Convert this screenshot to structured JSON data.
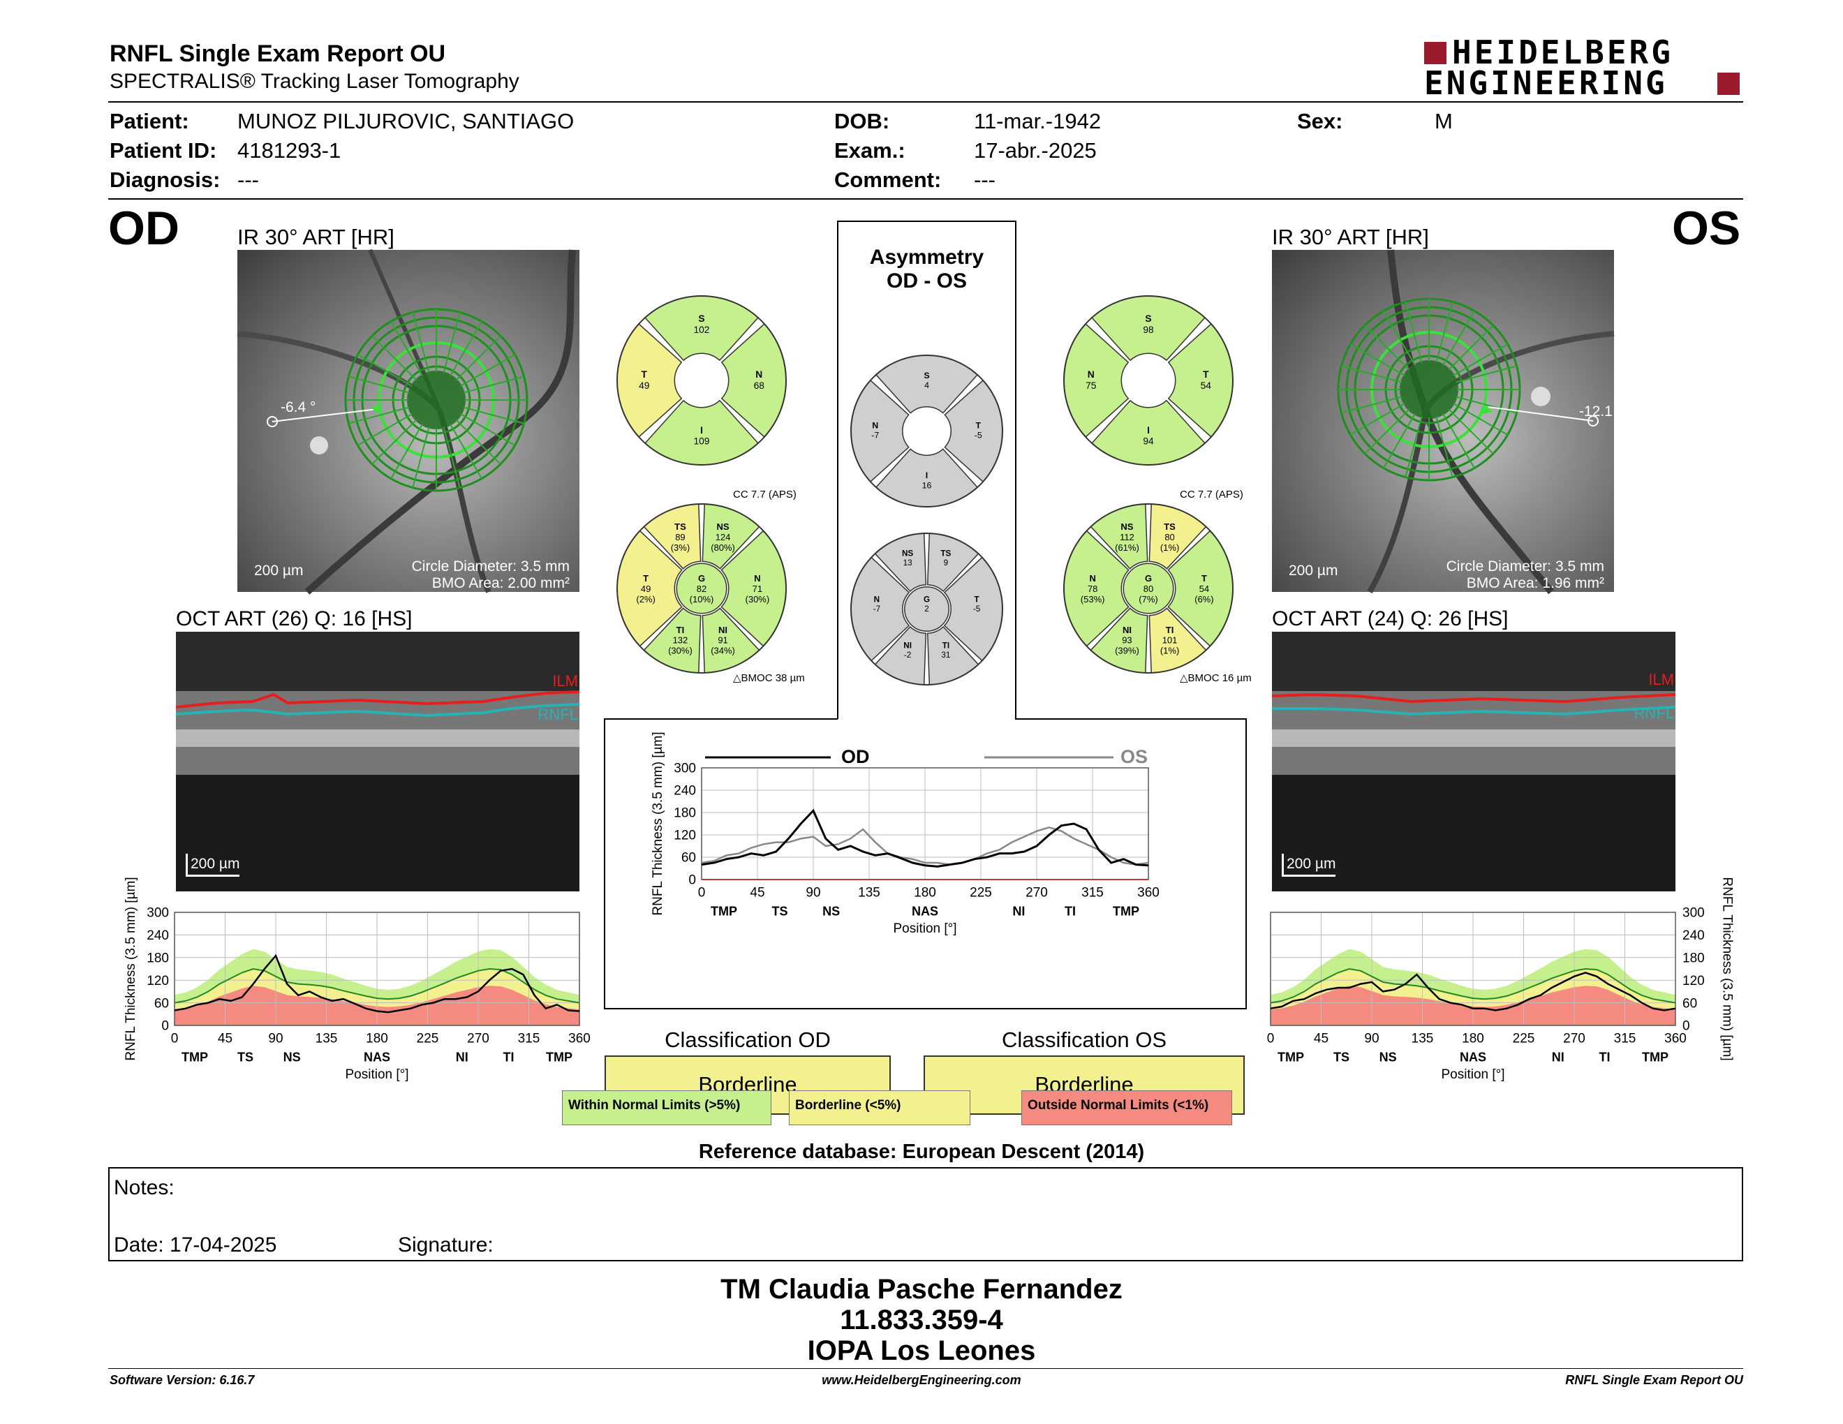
{
  "header": {
    "title": "RNFL Single Exam Report OU",
    "subtitle": "SPECTRALIS® Tracking Laser Tomography",
    "logo_line1": "HEIDELBERG",
    "logo_line2": "ENGINEERING"
  },
  "patient": {
    "patient_label": "Patient:",
    "patient_value": "MUNOZ PILJUROVIC, SANTIAGO",
    "id_label": "Patient ID:",
    "id_value": "4181293-1",
    "diagnosis_label": "Diagnosis:",
    "diagnosis_value": "---",
    "dob_label": "DOB:",
    "dob_value": "11-mar.-1942",
    "exam_label": "Exam.:",
    "exam_value": "17-abr.-2025",
    "comment_label": "Comment:",
    "comment_value": "---",
    "sex_label": "Sex:",
    "sex_value": "M"
  },
  "od": {
    "eye": "OD",
    "ir_title": "IR 30° ART [HR]",
    "angle": "-6.4 °",
    "scale": "200 µm",
    "circle_diameter": "Circle Diameter: 3.5 mm",
    "bmo_area": "BMO Area: 2.00 mm²",
    "oct_title": "OCT ART (26) Q: 16 [HS]",
    "ilm": "ILM",
    "rnfl": "RNFL",
    "oct_scale": "200 µm",
    "cc": "CC 7.7 (APS)",
    "bmoc": "BMOC 38 µm",
    "quad": {
      "S": "102",
      "T": "49",
      "N": "68",
      "I": "109"
    },
    "sectors": {
      "TS": [
        "TS",
        "89",
        "(3%)"
      ],
      "NS": [
        "NS",
        "124",
        "(80%)"
      ],
      "T": [
        "T",
        "49",
        "(2%)"
      ],
      "G": [
        "G",
        "82",
        "(10%)"
      ],
      "N": [
        "N",
        "71",
        "(30%)"
      ],
      "TI": [
        "TI",
        "132",
        "(30%)"
      ],
      "NI": [
        "NI",
        "91",
        "(34%)"
      ]
    }
  },
  "os": {
    "eye": "OS",
    "ir_title": "IR 30° ART [HR]",
    "angle": "-12.1",
    "scale": "200 µm",
    "circle_diameter": "Circle Diameter: 3.5 mm",
    "bmo_area": "BMO Area: 1.96 mm²",
    "oct_title": "OCT ART (24) Q: 26 [HS]",
    "ilm": "ILM",
    "rnfl": "RNFL",
    "oct_scale": "200 µm",
    "cc": "CC 7.7 (APS)",
    "bmoc": "BMOC 16 µm",
    "quad": {
      "S": "98",
      "N": "75",
      "T": "54",
      "I": "94"
    },
    "sectors": {
      "NS": [
        "NS",
        "112",
        "(61%)"
      ],
      "TS": [
        "TS",
        "80",
        "(1%)"
      ],
      "N": [
        "N",
        "78",
        "(53%)"
      ],
      "G": [
        "G",
        "80",
        "(7%)"
      ],
      "T": [
        "T",
        "54",
        "(6%)"
      ],
      "NI": [
        "NI",
        "93",
        "(39%)"
      ],
      "TI": [
        "TI",
        "101",
        "(1%)"
      ]
    }
  },
  "asym": {
    "title1": "Asymmetry",
    "title2": "OD - OS",
    "quad": {
      "S": "4",
      "N": "-7",
      "T": "-5",
      "I": "16"
    },
    "sectors": {
      "NS": [
        "NS",
        "13"
      ],
      "TS": [
        "TS",
        "9"
      ],
      "N": [
        "N",
        "-7"
      ],
      "G": [
        "G",
        "2"
      ],
      "T": [
        "T",
        "-5"
      ],
      "NI": [
        "NI",
        "-2"
      ],
      "TI": [
        "TI",
        "31"
      ]
    }
  },
  "colors": {
    "green": "#c6ef8e",
    "yellow": "#f3f18f",
    "red": "#f58a80",
    "gray": "#cfcfcf",
    "scan_green": "#2db92d",
    "logo_red": "#9a1b2e"
  },
  "chart_data": [
    {
      "type": "line",
      "title": "",
      "xlabel": "Position [°]",
      "ylabel": "RNFL Thickness (3.5 mm) [µm]",
      "xlim": [
        0,
        360
      ],
      "ylim": [
        0,
        300
      ],
      "x_ticks": [
        0,
        45,
        90,
        135,
        180,
        225,
        270,
        315,
        360
      ],
      "y_ticks": [
        0,
        60,
        120,
        180,
        240,
        300
      ],
      "sector_labels": [
        "TMP",
        "TS",
        "NS",
        "NAS",
        "NI",
        "TI",
        "TMP"
      ],
      "x": [
        0,
        10,
        20,
        30,
        40,
        50,
        60,
        70,
        80,
        90,
        100,
        110,
        120,
        130,
        140,
        150,
        160,
        170,
        180,
        190,
        200,
        210,
        220,
        230,
        240,
        250,
        260,
        270,
        280,
        290,
        300,
        310,
        320,
        330,
        340,
        350,
        360
      ],
      "series": [
        {
          "name": "OD",
          "values": [
            40,
            45,
            55,
            60,
            70,
            65,
            75,
            110,
            150,
            185,
            110,
            80,
            90,
            75,
            65,
            70,
            58,
            45,
            38,
            35,
            40,
            45,
            55,
            60,
            70,
            70,
            75,
            90,
            120,
            145,
            150,
            135,
            80,
            45,
            55,
            40,
            38
          ]
        },
        {
          "name": "OS",
          "values": [
            45,
            50,
            65,
            70,
            85,
            95,
            100,
            100,
            110,
            115,
            90,
            95,
            110,
            135,
            100,
            70,
            60,
            55,
            45,
            45,
            40,
            45,
            55,
            70,
            80,
            100,
            115,
            130,
            140,
            130,
            110,
            95,
            80,
            60,
            45,
            40,
            45
          ]
        }
      ],
      "series_legend": [
        "OD",
        "OS"
      ]
    },
    {
      "type": "area",
      "title": "",
      "xlabel": "Position [°]",
      "ylabel": "RNFL Thickness (3.5 mm) [µm]",
      "xlim": [
        0,
        360
      ],
      "ylim": [
        0,
        300
      ],
      "x_ticks": [
        0,
        45,
        90,
        135,
        180,
        225,
        270,
        315,
        360
      ],
      "y_ticks": [
        0,
        60,
        120,
        180,
        240,
        300
      ],
      "sector_labels": [
        "TMP",
        "TS",
        "NS",
        "NAS",
        "NI",
        "TI",
        "TMP"
      ],
      "x": [
        0,
        10,
        20,
        30,
        40,
        50,
        60,
        70,
        80,
        90,
        100,
        110,
        120,
        130,
        140,
        150,
        160,
        170,
        180,
        190,
        200,
        210,
        220,
        230,
        240,
        250,
        260,
        270,
        280,
        290,
        300,
        310,
        320,
        330,
        340,
        350,
        360
      ],
      "series": [
        {
          "name": "OD",
          "values": [
            40,
            45,
            55,
            60,
            70,
            65,
            75,
            110,
            150,
            185,
            110,
            80,
            90,
            75,
            65,
            70,
            58,
            45,
            38,
            35,
            40,
            45,
            55,
            60,
            70,
            70,
            75,
            90,
            120,
            145,
            150,
            135,
            80,
            45,
            55,
            40,
            38
          ]
        },
        {
          "name": "normal_mean",
          "values": [
            60,
            65,
            75,
            90,
            110,
            125,
            140,
            150,
            145,
            130,
            115,
            110,
            108,
            105,
            100,
            92,
            85,
            78,
            72,
            70,
            72,
            78,
            88,
            100,
            112,
            125,
            135,
            145,
            150,
            148,
            135,
            115,
            95,
            80,
            70,
            65,
            60
          ]
        }
      ]
    },
    {
      "type": "area",
      "title": "",
      "xlabel": "Position [°]",
      "ylabel": "RNFL Thickness (3.5 mm) [µm]",
      "xlim": [
        0,
        360
      ],
      "ylim": [
        0,
        300
      ],
      "x_ticks": [
        0,
        45,
        90,
        135,
        180,
        225,
        270,
        315,
        360
      ],
      "y_ticks": [
        0,
        60,
        120,
        180,
        240,
        300
      ],
      "sector_labels": [
        "TMP",
        "TS",
        "NS",
        "NAS",
        "NI",
        "TI",
        "TMP"
      ],
      "x": [
        0,
        10,
        20,
        30,
        40,
        50,
        60,
        70,
        80,
        90,
        100,
        110,
        120,
        130,
        140,
        150,
        160,
        170,
        180,
        190,
        200,
        210,
        220,
        230,
        240,
        250,
        260,
        270,
        280,
        290,
        300,
        310,
        320,
        330,
        340,
        350,
        360
      ],
      "series": [
        {
          "name": "OS",
          "values": [
            45,
            50,
            65,
            70,
            85,
            95,
            100,
            100,
            110,
            115,
            90,
            95,
            110,
            135,
            100,
            70,
            60,
            55,
            45,
            45,
            40,
            45,
            55,
            70,
            80,
            100,
            115,
            130,
            140,
            130,
            110,
            95,
            80,
            60,
            45,
            40,
            45
          ]
        },
        {
          "name": "normal_mean",
          "values": [
            60,
            65,
            75,
            90,
            110,
            125,
            140,
            150,
            145,
            130,
            115,
            110,
            108,
            105,
            100,
            92,
            85,
            78,
            72,
            70,
            72,
            78,
            88,
            100,
            112,
            125,
            135,
            145,
            150,
            148,
            135,
            115,
            95,
            80,
            70,
            65,
            60
          ]
        }
      ]
    }
  ],
  "classification": {
    "od_title": "Classification OD",
    "os_title": "Classification OS",
    "od_value": "Borderline",
    "os_value": "Borderline",
    "legend_green": "Within Normal Limits (>5%)",
    "legend_yellow": "Borderline (<5%)",
    "legend_red": "Outside Normal Limits (<1%)"
  },
  "reference": "Reference database: European Descent (2014)",
  "notes": {
    "notes_label": "Notes:",
    "date_label": "Date: 17-04-2025",
    "signature_label": "Signature:"
  },
  "signatory": {
    "line1": "TM Claudia Pasche Fernandez",
    "line2": "11.833.359-4",
    "line3": "IOPA Los Leones"
  },
  "footer": {
    "software": "Software Version: 6.16.7",
    "website": "www.HeidelbergEngineering.com",
    "report": "RNFL Single Exam Report OU"
  }
}
